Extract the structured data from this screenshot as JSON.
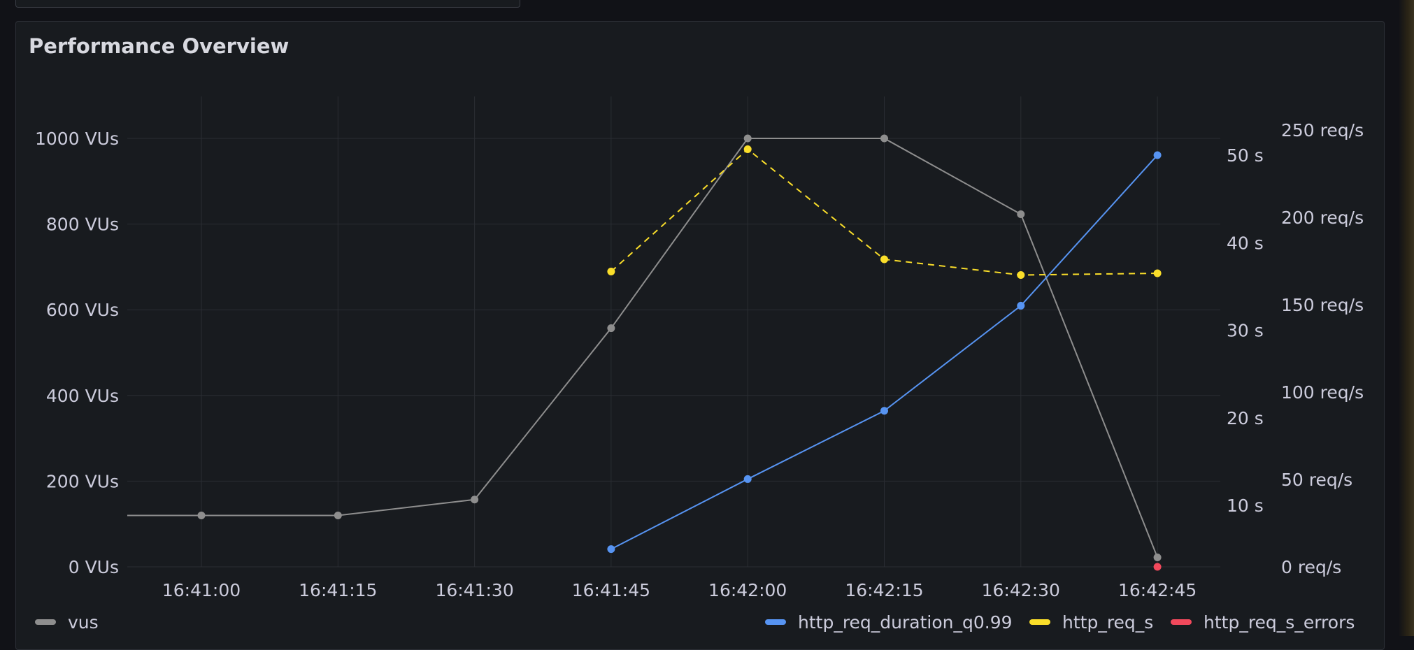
{
  "panel": {
    "title": "Performance Overview"
  },
  "chart_data": {
    "type": "line",
    "x_unit": "time",
    "x": [
      "16:41:00",
      "16:41:15",
      "16:41:30",
      "16:41:45",
      "16:42:00",
      "16:42:15",
      "16:42:30",
      "16:42:45"
    ],
    "x_tick_labels": [
      "16:41:00",
      "16:41:15",
      "16:41:30",
      "16:41:45",
      "16:42:00",
      "16:42:15",
      "16:42:30",
      "16:42:45"
    ],
    "axes": {
      "left": {
        "ylim": [
          0,
          1000
        ],
        "ticks": [
          0,
          200,
          400,
          600,
          800,
          1000
        ],
        "tick_labels": [
          "0 VUs",
          "200 VUs",
          "400 VUs",
          "600 VUs",
          "800 VUs",
          "1000 VUs"
        ]
      },
      "right1": {
        "ylim": [
          0,
          55
        ],
        "ticks": [
          10,
          20,
          30,
          40,
          50
        ],
        "tick_labels": [
          "10 s",
          "20 s",
          "30 s",
          "40 s",
          "50 s"
        ]
      },
      "right2": {
        "ylim": [
          0,
          250
        ],
        "ticks": [
          0,
          50,
          100,
          150,
          200,
          250
        ],
        "tick_labels": [
          "0 req/s",
          "50 req/s",
          "100 req/s",
          "150 req/s",
          "200 req/s",
          "250 req/s"
        ]
      }
    },
    "series": [
      {
        "name": "vus",
        "axis": "left",
        "color": "#8e8e8e",
        "dash": false,
        "values": [
          120,
          120,
          157,
          557,
          1000,
          1000,
          823,
          22
        ]
      },
      {
        "name": "http_req_duration_q0.99",
        "axis": "right1",
        "color": "#5794f2",
        "dash": false,
        "values": [
          null,
          null,
          null,
          5,
          13,
          20.8,
          32.8,
          50
        ]
      },
      {
        "name": "http_req_s",
        "axis": "right2",
        "color": "#fade2a",
        "dash": true,
        "values": [
          null,
          null,
          null,
          169,
          239,
          176,
          167,
          168
        ]
      },
      {
        "name": "http_req_s_errors",
        "axis": "right2",
        "color": "#f2495c",
        "dash": false,
        "values": [
          null,
          null,
          null,
          null,
          null,
          null,
          null,
          0
        ]
      }
    ],
    "grid": true,
    "legend": {
      "placement": "bottom",
      "left": [
        "vus"
      ],
      "right": [
        "http_req_duration_q0.99",
        "http_req_s",
        "http_req_s_errors"
      ]
    }
  }
}
